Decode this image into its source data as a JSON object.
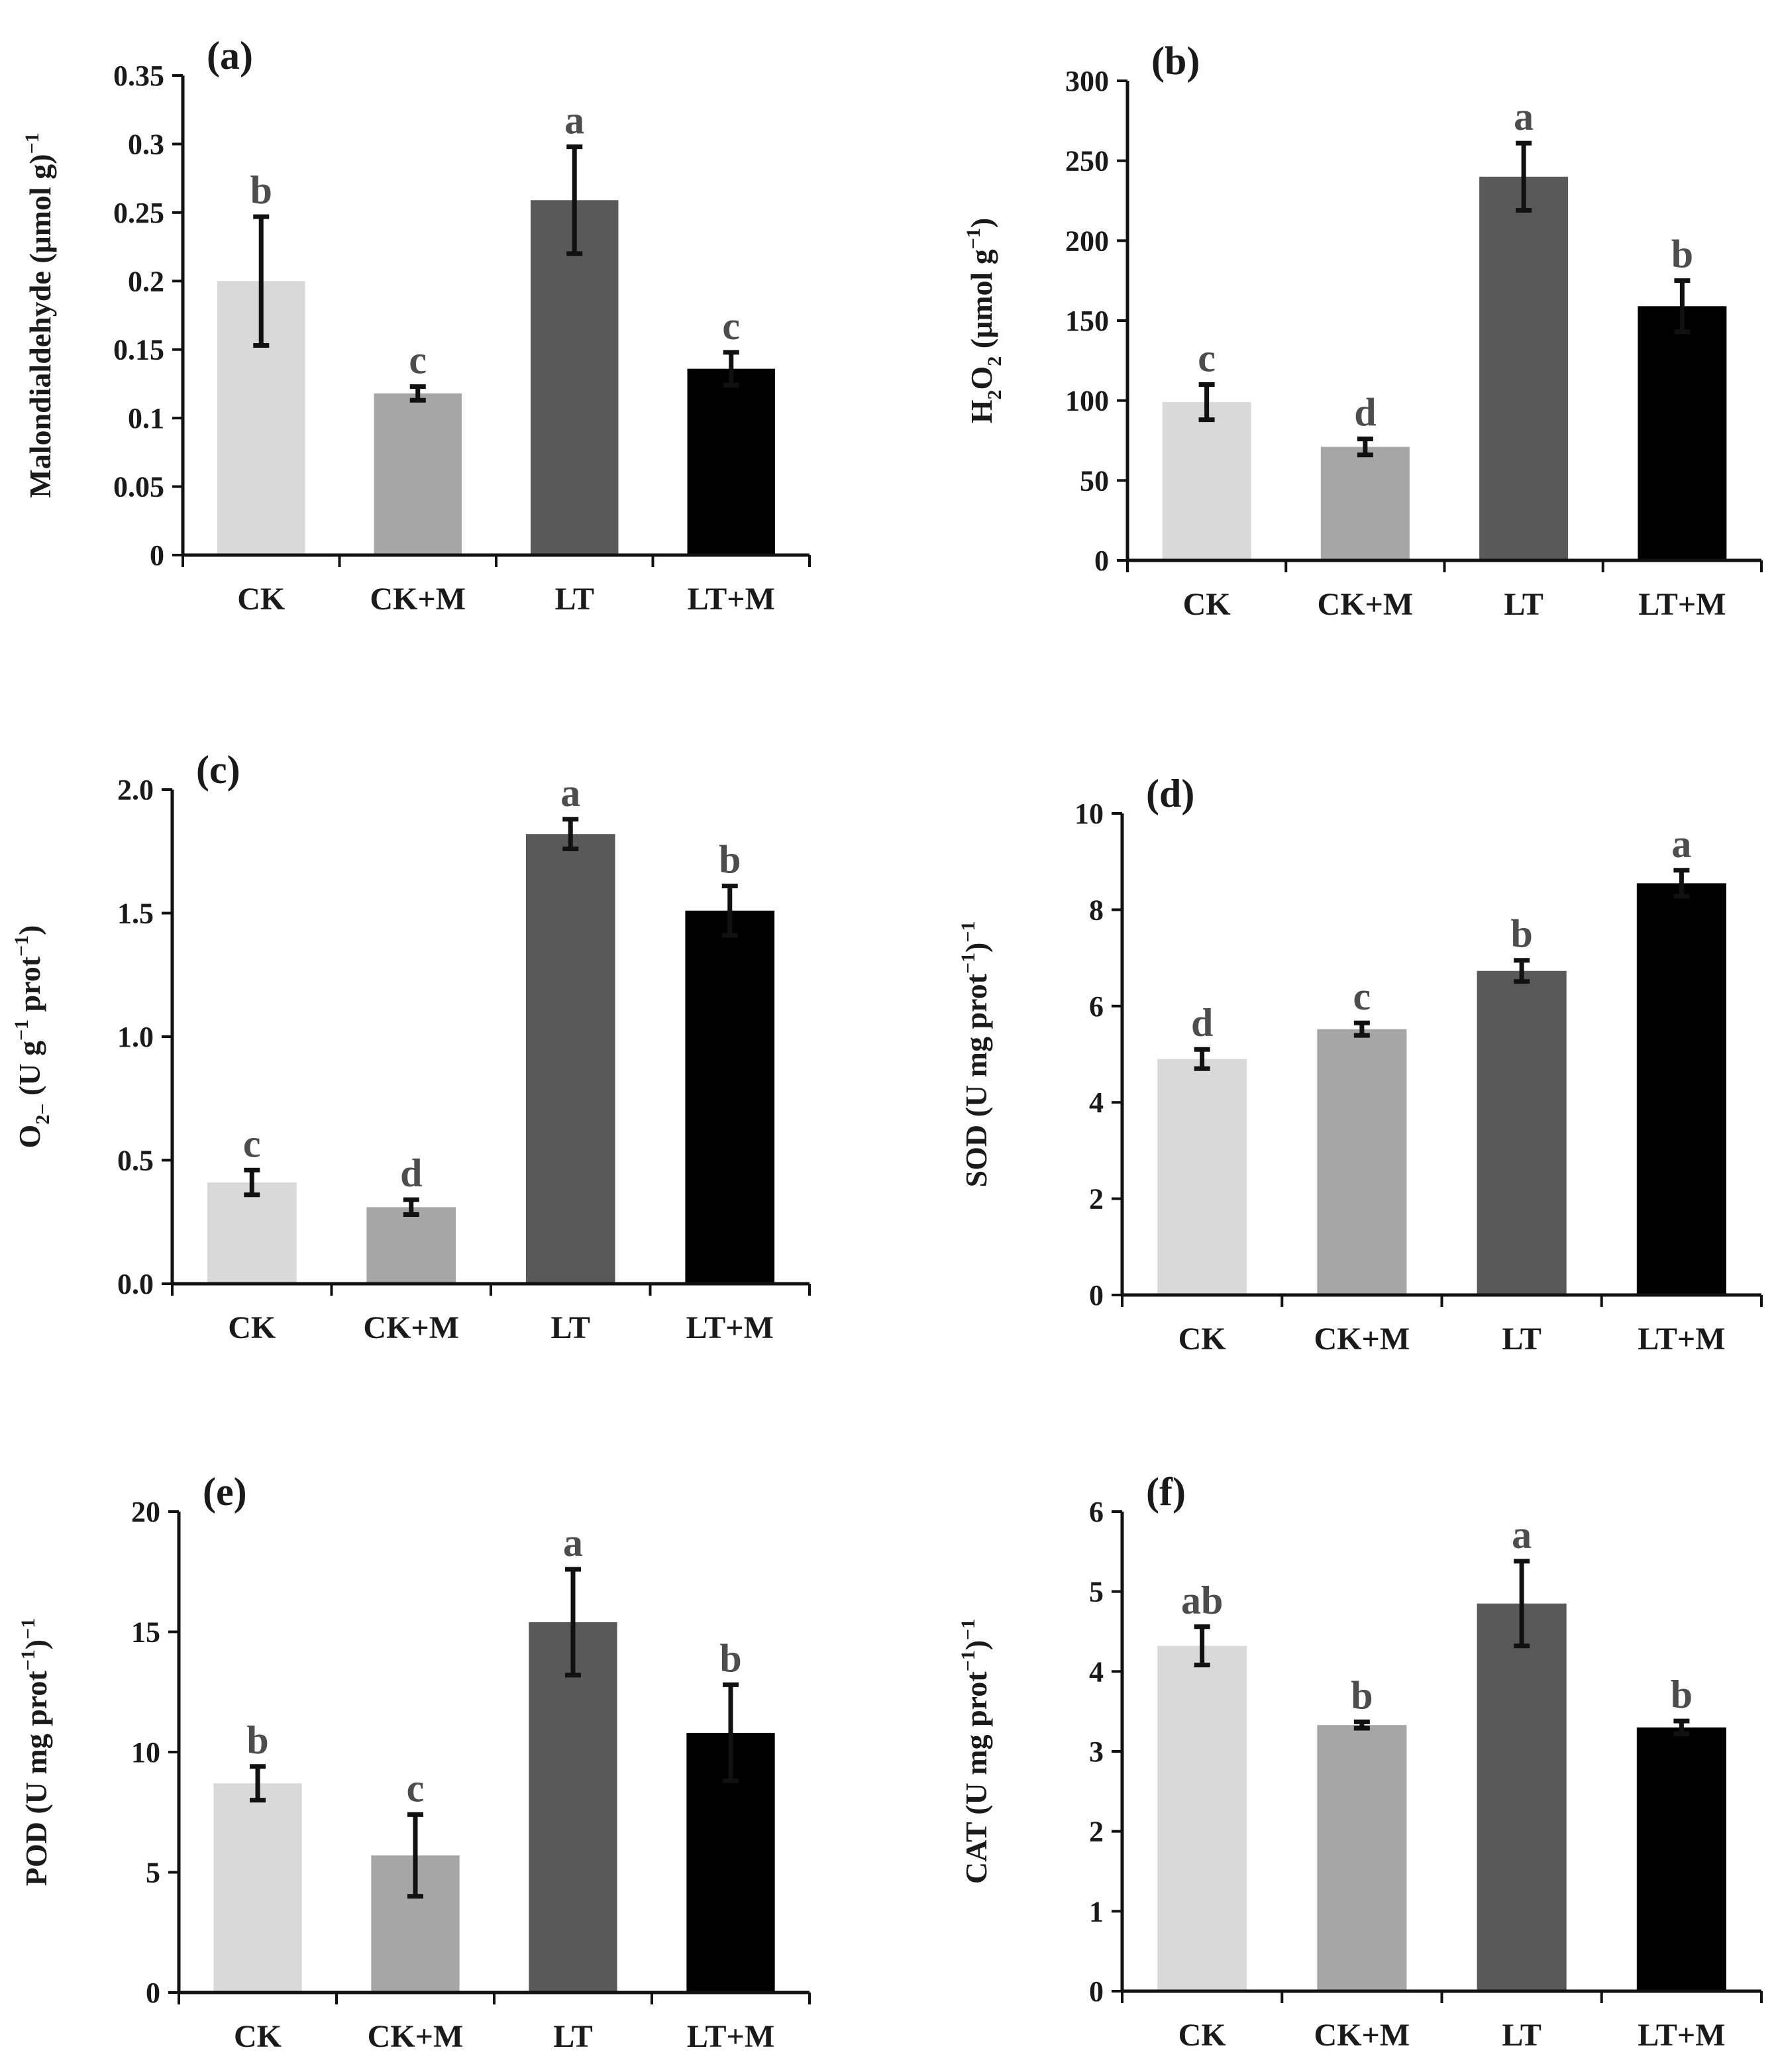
{
  "figure": {
    "categories": [
      "CK",
      "CK+M",
      "LT",
      "LT+M"
    ],
    "bar_colors": [
      "#d9d9d9",
      "#a6a6a6",
      "#595959",
      "#000000"
    ]
  },
  "chart_data": [
    {
      "type": "bar",
      "panel": "(a)",
      "ylabel": {
        "main": "Malondialdehyde (μmol g",
        "sup": "−1",
        "tail": ")"
      },
      "categories": [
        "CK",
        "CK+M",
        "LT",
        "LT+M"
      ],
      "values": [
        0.2,
        0.118,
        0.259,
        0.136
      ],
      "errors": [
        0.047,
        0.005,
        0.039,
        0.012
      ],
      "letters": [
        "b",
        "c",
        "a",
        "c"
      ],
      "ylim": [
        0,
        0.35
      ],
      "ticks": [
        0,
        0.05,
        0.1,
        0.15,
        0.2,
        0.25,
        0.3,
        0.35
      ],
      "tick_labels": [
        "0",
        "0.05",
        "0.1",
        "0.15",
        "0.2",
        "0.25",
        "0.3",
        "0.35"
      ]
    },
    {
      "type": "bar",
      "panel": "(b)",
      "ylabel": {
        "main": "H",
        "sub": "2",
        "main2": "O",
        "sub2": "2",
        "tail": " (μmol g",
        "sup": "−1",
        "tail2": ")"
      },
      "categories": [
        "CK",
        "CK+M",
        "LT",
        "LT+M"
      ],
      "values": [
        99,
        71,
        240,
        159
      ],
      "errors": [
        11,
        5,
        21,
        16
      ],
      "letters": [
        "c",
        "d",
        "a",
        "b"
      ],
      "ylim": [
        0,
        300
      ],
      "ticks": [
        0,
        50,
        100,
        150,
        200,
        250,
        300
      ],
      "tick_labels": [
        "0",
        "50",
        "100",
        "150",
        "200",
        "250",
        "300"
      ]
    },
    {
      "type": "bar",
      "panel": "(c)",
      "ylabel": {
        "main": "O",
        "sub": "2−",
        "tail": " (U g",
        "sup": "−1",
        "tail2": " prot",
        "sup2": "−1",
        "tail3": ")"
      },
      "categories": [
        "CK",
        "CK+M",
        "LT",
        "LT+M"
      ],
      "values": [
        0.41,
        0.31,
        1.82,
        1.51
      ],
      "errors": [
        0.05,
        0.03,
        0.06,
        0.1
      ],
      "letters": [
        "c",
        "d",
        "a",
        "b"
      ],
      "ylim": [
        0,
        2.0
      ],
      "ticks": [
        0,
        0.5,
        1.0,
        1.5,
        2.0
      ],
      "tick_labels": [
        "0.0",
        "0.5",
        "1.0",
        "1.5",
        "2.0"
      ]
    },
    {
      "type": "bar",
      "panel": "(d)",
      "ylabel": {
        "main": "SOD (U mg",
        "sup": "−1",
        "tail": " prot",
        "sup2": "−1",
        "tail2": ")"
      },
      "categories": [
        "CK",
        "CK+M",
        "LT",
        "LT+M"
      ],
      "values": [
        4.9,
        5.52,
        6.73,
        8.55
      ],
      "errors": [
        0.2,
        0.13,
        0.22,
        0.27
      ],
      "letters": [
        "d",
        "c",
        "b",
        "a"
      ],
      "ylim": [
        0,
        10
      ],
      "ticks": [
        0,
        2,
        4,
        6,
        8,
        10
      ],
      "tick_labels": [
        "0",
        "2",
        "4",
        "6",
        "8",
        "10"
      ]
    },
    {
      "type": "bar",
      "panel": "(e)",
      "ylabel": {
        "main": "POD (U mg",
        "sup": "−1",
        "tail": " prot",
        "sup2": "−1",
        "tail2": ")"
      },
      "categories": [
        "CK",
        "CK+M",
        "LT",
        "LT+M"
      ],
      "values": [
        8.7,
        5.7,
        15.4,
        10.8
      ],
      "errors": [
        0.7,
        1.7,
        2.2,
        2.0
      ],
      "letters": [
        "b",
        "c",
        "a",
        "b"
      ],
      "ylim": [
        0,
        20
      ],
      "ticks": [
        0,
        5,
        10,
        15,
        20
      ],
      "tick_labels": [
        "0",
        "5",
        "10",
        "15",
        "20"
      ]
    },
    {
      "type": "bar",
      "panel": "(f)",
      "ylabel": {
        "main": "CAT (U mg",
        "sup": "−1",
        "tail": " prot",
        "sup2": "−1",
        "tail2": ")"
      },
      "categories": [
        "CK",
        "CK+M",
        "LT",
        "LT+M"
      ],
      "values": [
        4.32,
        3.33,
        4.85,
        3.3
      ],
      "errors": [
        0.24,
        0.04,
        0.53,
        0.08
      ],
      "letters": [
        "ab",
        "b",
        "a",
        "b"
      ],
      "ylim": [
        0,
        6
      ],
      "ticks": [
        0,
        1,
        2,
        3,
        4,
        5,
        6
      ],
      "tick_labels": [
        "0",
        "1",
        "2",
        "3",
        "4",
        "5",
        "6"
      ]
    }
  ]
}
